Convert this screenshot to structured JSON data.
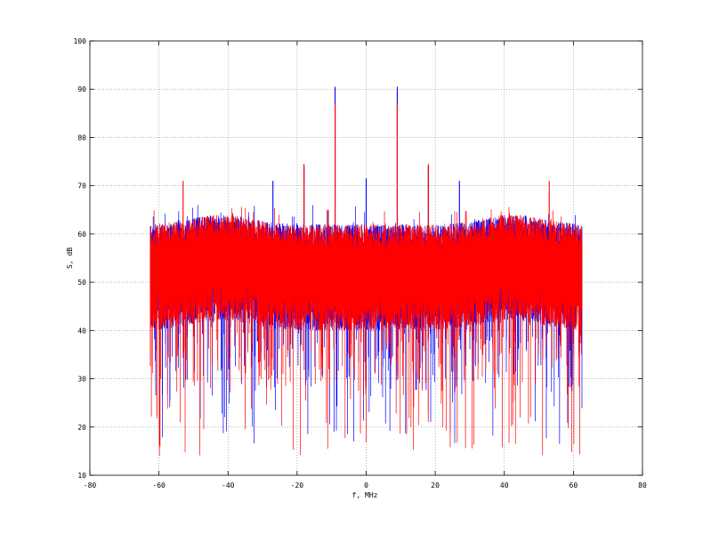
{
  "chart_data": {
    "type": "line",
    "title": "",
    "xlabel": "f, MHz",
    "ylabel": "S, dB",
    "xlim": [
      -80,
      80
    ],
    "ylim": [
      10,
      100
    ],
    "xticks": [
      -80,
      -60,
      -40,
      -20,
      0,
      20,
      40,
      60,
      80
    ],
    "yticks": [
      10,
      20,
      30,
      40,
      50,
      60,
      70,
      80,
      90,
      100
    ],
    "grid": true,
    "legend": "none",
    "colors": {
      "series_1": "#0000ff",
      "series_2": "#ff0000",
      "grid": "#808080"
    },
    "x_range": [
      -62.5,
      62.5
    ],
    "series": [
      {
        "color": "#0000ff",
        "noise_band": {
          "upper": [
            56,
            62
          ],
          "lower": [
            40,
            48
          ],
          "low_spikes_min": 16.5,
          "high_spikes_max": 66
        },
        "peaks": [
          {
            "x": -9,
            "y": 90.5
          },
          {
            "x": 9,
            "y": 90.5
          },
          {
            "x": 0,
            "y": 71.5
          },
          {
            "x": -27,
            "y": 71
          },
          {
            "x": 27,
            "y": 71
          },
          {
            "x": -18,
            "y": 74
          },
          {
            "x": 18,
            "y": 74
          }
        ]
      },
      {
        "color": "#ff0000",
        "noise_band": {
          "upper": [
            56,
            62
          ],
          "lower": [
            40,
            48
          ],
          "low_spikes_min": 14,
          "high_spikes_max": 66
        },
        "peaks": [
          {
            "x": -9,
            "y": 87
          },
          {
            "x": 9,
            "y": 87
          },
          {
            "x": -18,
            "y": 74.5
          },
          {
            "x": 18,
            "y": 74.5
          },
          {
            "x": -53,
            "y": 71
          },
          {
            "x": 53,
            "y": 71
          }
        ]
      }
    ]
  }
}
